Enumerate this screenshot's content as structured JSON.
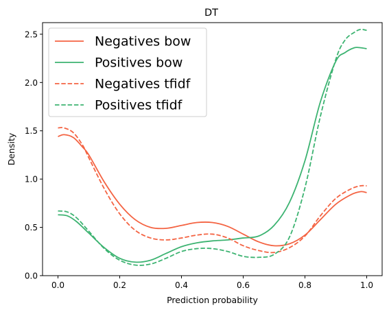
{
  "chart_data": {
    "type": "line",
    "title": "DT",
    "xlabel": "Prediction probability",
    "ylabel": "Density",
    "xlim": [
      -0.05,
      1.05
    ],
    "ylim": [
      0.0,
      2.62
    ],
    "xticks": [
      "0.0",
      "0.2",
      "0.4",
      "0.6",
      "0.8",
      "1.0"
    ],
    "yticks": [
      "0.0",
      "0.5",
      "1.0",
      "1.5",
      "2.0",
      "2.5"
    ],
    "grid": false,
    "legend_position": "top-left",
    "series": [
      {
        "name": "Negatives bow",
        "color": "#f46342",
        "dash": "solid",
        "x": [
          0.0,
          0.02,
          0.05,
          0.08,
          0.1,
          0.15,
          0.2,
          0.25,
          0.3,
          0.35,
          0.4,
          0.45,
          0.5,
          0.55,
          0.6,
          0.65,
          0.7,
          0.75,
          0.8,
          0.85,
          0.9,
          0.95,
          0.98,
          1.0
        ],
        "y": [
          1.44,
          1.46,
          1.43,
          1.33,
          1.25,
          0.97,
          0.74,
          0.58,
          0.5,
          0.49,
          0.52,
          0.55,
          0.55,
          0.51,
          0.43,
          0.35,
          0.31,
          0.33,
          0.42,
          0.58,
          0.74,
          0.84,
          0.87,
          0.86
        ]
      },
      {
        "name": "Positives bow",
        "color": "#3cb371",
        "dash": "solid",
        "x": [
          0.0,
          0.03,
          0.06,
          0.1,
          0.15,
          0.2,
          0.25,
          0.3,
          0.35,
          0.4,
          0.45,
          0.5,
          0.55,
          0.6,
          0.65,
          0.7,
          0.75,
          0.8,
          0.85,
          0.9,
          0.93,
          0.96,
          0.98,
          1.0
        ],
        "y": [
          0.63,
          0.62,
          0.56,
          0.44,
          0.29,
          0.18,
          0.14,
          0.16,
          0.23,
          0.3,
          0.34,
          0.36,
          0.37,
          0.39,
          0.41,
          0.52,
          0.76,
          1.19,
          1.8,
          2.22,
          2.31,
          2.36,
          2.36,
          2.35
        ]
      },
      {
        "name": "Negatives tfidf",
        "color": "#f46342",
        "dash": "dashed",
        "x": [
          0.0,
          0.02,
          0.05,
          0.08,
          0.1,
          0.15,
          0.2,
          0.25,
          0.3,
          0.35,
          0.4,
          0.45,
          0.5,
          0.55,
          0.6,
          0.65,
          0.7,
          0.75,
          0.8,
          0.85,
          0.9,
          0.95,
          0.98,
          1.0
        ],
        "y": [
          1.53,
          1.53,
          1.48,
          1.35,
          1.22,
          0.9,
          0.64,
          0.47,
          0.39,
          0.37,
          0.39,
          0.42,
          0.43,
          0.39,
          0.31,
          0.26,
          0.24,
          0.29,
          0.41,
          0.62,
          0.8,
          0.9,
          0.93,
          0.93
        ]
      },
      {
        "name": "Positives tfidf",
        "color": "#3cb371",
        "dash": "dashed",
        "x": [
          0.0,
          0.03,
          0.06,
          0.1,
          0.15,
          0.2,
          0.25,
          0.3,
          0.35,
          0.4,
          0.45,
          0.5,
          0.55,
          0.6,
          0.65,
          0.7,
          0.75,
          0.8,
          0.85,
          0.9,
          0.93,
          0.96,
          0.98,
          1.0
        ],
        "y": [
          0.67,
          0.66,
          0.6,
          0.46,
          0.28,
          0.16,
          0.11,
          0.12,
          0.18,
          0.25,
          0.28,
          0.28,
          0.25,
          0.2,
          0.19,
          0.22,
          0.4,
          0.91,
          1.65,
          2.24,
          2.44,
          2.52,
          2.55,
          2.54
        ]
      }
    ]
  }
}
